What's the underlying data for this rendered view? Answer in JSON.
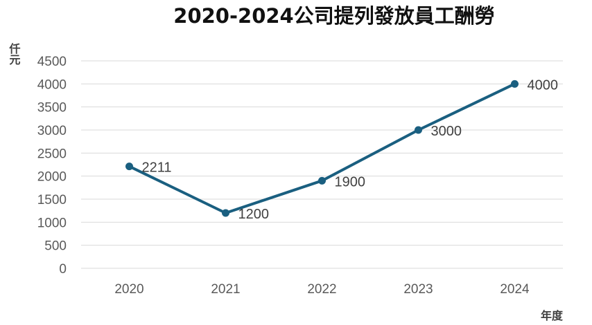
{
  "chart_data": {
    "type": "line",
    "title": "2020-2024公司提列發放員工酬勞",
    "ylabel": "仟元",
    "xlabel": "年度",
    "categories": [
      "2020",
      "2021",
      "2022",
      "2023",
      "2024"
    ],
    "series": [
      {
        "values": [
          2211,
          1200,
          1900,
          3000,
          4000
        ],
        "color": "#1a5f80"
      }
    ],
    "ylim": [
      0,
      4500
    ],
    "yticks": [
      0,
      500,
      1000,
      1500,
      2000,
      2500,
      3000,
      3500,
      4000,
      4500
    ],
    "grid": true,
    "legend": "none"
  }
}
